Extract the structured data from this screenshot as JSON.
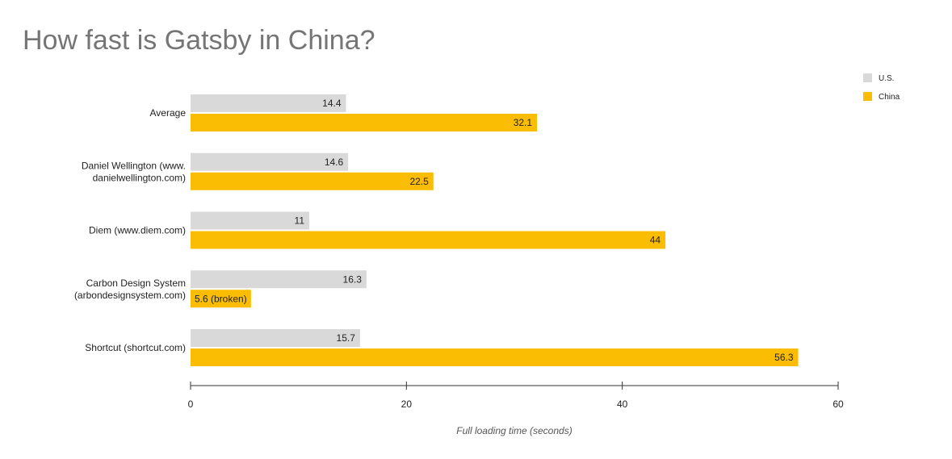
{
  "chart_data": {
    "type": "bar",
    "orientation": "horizontal",
    "title": "How fast is Gatsby in China?",
    "xlabel": "Full loading time (seconds)",
    "ylabel": "",
    "xlim": [
      0,
      60
    ],
    "xticks": [
      0,
      20,
      40,
      60
    ],
    "grid": false,
    "legend_position": "top-right",
    "categories": [
      [
        "Average"
      ],
      [
        "Daniel Wellington (www.",
        "danielwellington.com)"
      ],
      [
        "Diem (www.diem.com)"
      ],
      [
        "Carbon Design System",
        "(arbondesignsystem.com)"
      ],
      [
        "Shortcut (shortcut.com)"
      ]
    ],
    "series": [
      {
        "name": "U.S.",
        "color": "#d9d9d9",
        "values": [
          14.4,
          14.6,
          11,
          16.3,
          15.7
        ],
        "labels": [
          "14.4",
          "14.6",
          "11",
          "16.3",
          "15.7"
        ]
      },
      {
        "name": "China",
        "color": "#fbbc04",
        "values": [
          32.1,
          22.5,
          44,
          5.6,
          56.3
        ],
        "labels": [
          "32.1",
          "22.5",
          "44",
          "5.6 (broken)",
          "56.3"
        ]
      }
    ]
  }
}
